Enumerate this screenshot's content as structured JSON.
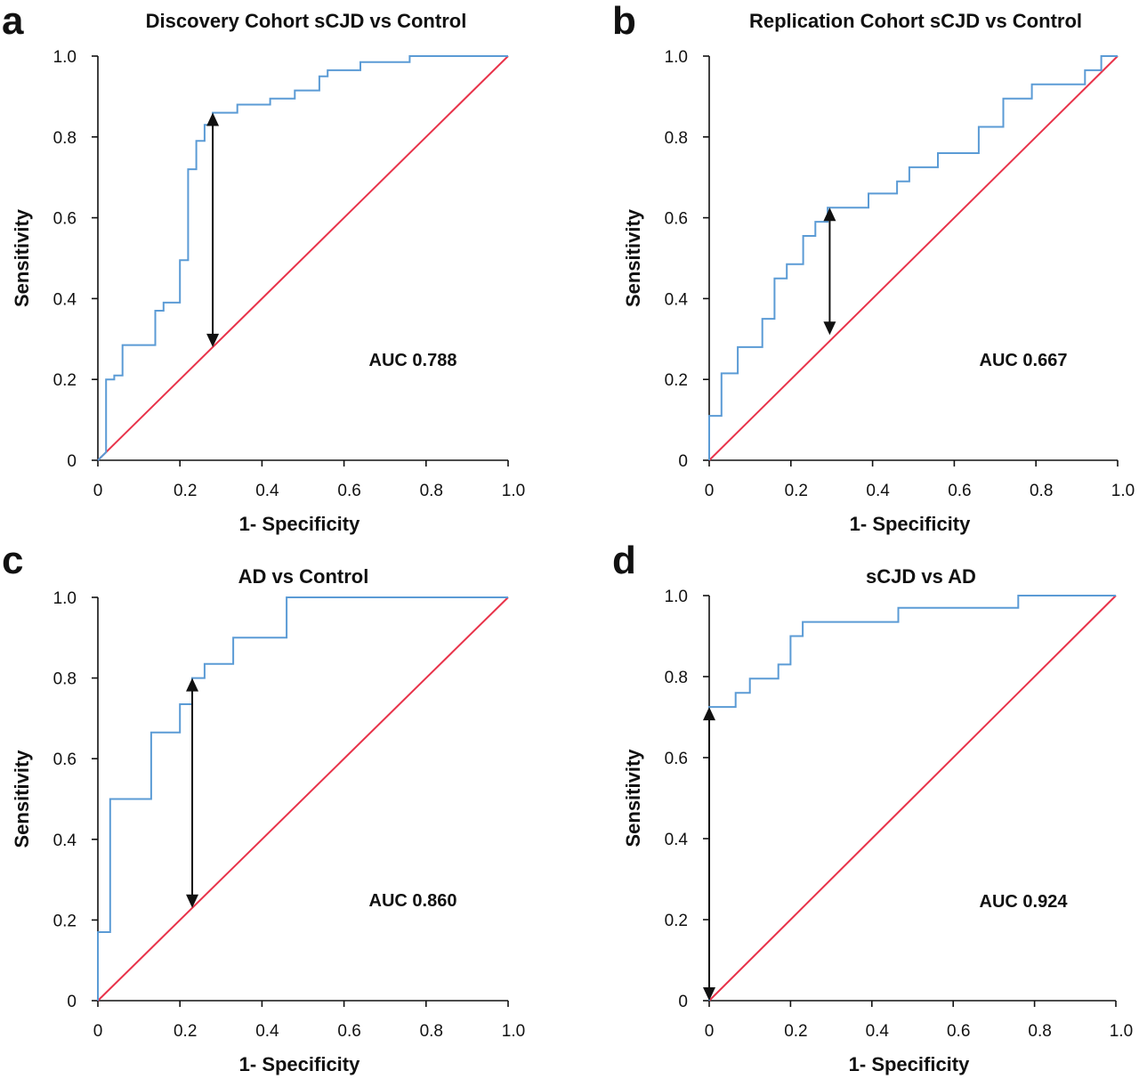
{
  "chart_data": [
    {
      "panel_letter": "a",
      "type": "line",
      "title": "Discovery Cohort sCJD vs Control",
      "xlabel": "1- Specificity",
      "ylabel": "Sensitivity",
      "xlim": [
        0,
        1
      ],
      "ylim": [
        0,
        1
      ],
      "x_tick_labels": [
        "0",
        "0.2",
        "0.4",
        "0.6",
        "0.8",
        "1.0"
      ],
      "y_tick_labels": [
        "0",
        "0.2",
        "0.4",
        "0.6",
        "0.8",
        "1.0"
      ],
      "annotation": "AUC 0.788",
      "series": [
        {
          "x": [
            0,
            0.02,
            0.02,
            0.04,
            0.04,
            0.06,
            0.06,
            0.14,
            0.14,
            0.16,
            0.16,
            0.2,
            0.2,
            0.22,
            0.22,
            0.24,
            0.24,
            0.26,
            0.26,
            0.28,
            0.28,
            0.34,
            0.34,
            0.42,
            0.42,
            0.48,
            0.48,
            0.54,
            0.54,
            0.56,
            0.56,
            0.64,
            0.64,
            0.76,
            0.76,
            1.0
          ],
          "y": [
            0,
            0.02,
            0.2,
            0.2,
            0.21,
            0.21,
            0.285,
            0.285,
            0.37,
            0.37,
            0.39,
            0.39,
            0.495,
            0.495,
            0.72,
            0.72,
            0.79,
            0.79,
            0.83,
            0.83,
            0.86,
            0.86,
            0.88,
            0.88,
            0.895,
            0.895,
            0.915,
            0.915,
            0.95,
            0.95,
            0.965,
            0.965,
            0.985,
            0.985,
            1.0,
            1.0
          ]
        }
      ],
      "reference_line": {
        "x": [
          0,
          1
        ],
        "y": [
          0,
          1
        ]
      },
      "arrow": {
        "x": 0.28,
        "y_from": 0.28,
        "y_to": 0.86
      }
    },
    {
      "panel_letter": "b",
      "type": "line",
      "title": "Replication Cohort sCJD vs Control",
      "xlabel": "1- Specificity",
      "ylabel": "Sensitivity",
      "xlim": [
        0,
        1
      ],
      "ylim": [
        0,
        1
      ],
      "x_tick_labels": [
        "0",
        "0.2",
        "0.4",
        "0.6",
        "0.8",
        "1.0"
      ],
      "y_tick_labels": [
        "0",
        "0.2",
        "0.4",
        "0.6",
        "0.8",
        "1.0"
      ],
      "annotation": "AUC 0.667",
      "series": [
        {
          "x": [
            0,
            0,
            0.03,
            0.03,
            0.07,
            0.07,
            0.13,
            0.13,
            0.16,
            0.16,
            0.19,
            0.19,
            0.23,
            0.23,
            0.26,
            0.26,
            0.29,
            0.29,
            0.39,
            0.39,
            0.46,
            0.46,
            0.49,
            0.49,
            0.56,
            0.56,
            0.66,
            0.66,
            0.72,
            0.72,
            0.79,
            0.79,
            0.92,
            0.92,
            0.96,
            0.96,
            1.0
          ],
          "y": [
            0,
            0.11,
            0.11,
            0.215,
            0.215,
            0.28,
            0.28,
            0.35,
            0.35,
            0.45,
            0.45,
            0.485,
            0.485,
            0.555,
            0.555,
            0.59,
            0.59,
            0.625,
            0.625,
            0.66,
            0.66,
            0.69,
            0.69,
            0.725,
            0.725,
            0.76,
            0.76,
            0.825,
            0.825,
            0.895,
            0.895,
            0.93,
            0.93,
            0.965,
            0.965,
            1.0,
            1.0
          ]
        }
      ],
      "reference_line": {
        "x": [
          0,
          1
        ],
        "y": [
          0,
          1
        ]
      },
      "arrow": {
        "x": 0.295,
        "y_from": 0.31,
        "y_to": 0.625
      }
    },
    {
      "panel_letter": "c",
      "type": "line",
      "title": "AD vs Control",
      "xlabel": "1- Specificity",
      "ylabel": "Sensitivity",
      "xlim": [
        0,
        1
      ],
      "ylim": [
        0,
        1
      ],
      "x_tick_labels": [
        "0",
        "0.2",
        "0.4",
        "0.6",
        "0.8",
        "1.0"
      ],
      "y_tick_labels": [
        "0",
        "0.2",
        "0.4",
        "0.6",
        "0.8",
        "1.0"
      ],
      "annotation": "AUC 0.860",
      "series": [
        {
          "x": [
            0,
            0,
            0.03,
            0.03,
            0.13,
            0.13,
            0.2,
            0.2,
            0.23,
            0.23,
            0.26,
            0.26,
            0.33,
            0.33,
            0.46,
            0.46,
            1.0
          ],
          "y": [
            0,
            0.17,
            0.17,
            0.5,
            0.5,
            0.665,
            0.665,
            0.735,
            0.735,
            0.8,
            0.8,
            0.835,
            0.835,
            0.9,
            0.9,
            1.0,
            1.0
          ]
        }
      ],
      "reference_line": {
        "x": [
          0,
          1
        ],
        "y": [
          0,
          1
        ]
      },
      "arrow": {
        "x": 0.23,
        "y_from": 0.23,
        "y_to": 0.8
      }
    },
    {
      "panel_letter": "d",
      "type": "line",
      "title": "sCJD vs AD",
      "xlabel": "1- Specificity",
      "ylabel": "Sensitivity",
      "xlim": [
        0,
        1
      ],
      "ylim": [
        0,
        1
      ],
      "x_tick_labels": [
        "0",
        "0.2",
        "0.4",
        "0.6",
        "0.8",
        "1.0"
      ],
      "y_tick_labels": [
        "0",
        "0.2",
        "0.4",
        "0.6",
        "0.8",
        "1.0"
      ],
      "annotation": "AUC 0.924",
      "series": [
        {
          "x": [
            0,
            0,
            0.065,
            0.065,
            0.1,
            0.1,
            0.17,
            0.17,
            0.2,
            0.2,
            0.23,
            0.23,
            0.465,
            0.465,
            0.76,
            0.76,
            1.0
          ],
          "y": [
            0,
            0.725,
            0.725,
            0.76,
            0.76,
            0.795,
            0.795,
            0.83,
            0.83,
            0.9,
            0.9,
            0.935,
            0.935,
            0.97,
            0.97,
            1.0,
            1.0
          ]
        }
      ],
      "reference_line": {
        "x": [
          0,
          1
        ],
        "y": [
          0,
          1
        ]
      },
      "arrow": {
        "x": 0.0,
        "y_from": 0.0,
        "y_to": 0.725
      }
    }
  ]
}
